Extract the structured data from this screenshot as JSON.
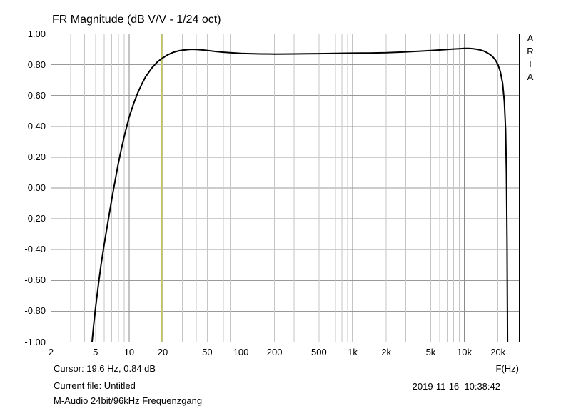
{
  "title": "FR Magnitude (dB V/V - 1/24 oct)",
  "brand": {
    "name": "ARTA",
    "letters": [
      "A",
      "R",
      "T",
      "A"
    ]
  },
  "footer": {
    "cursor_readout": "Cursor: 19.6 Hz, 0.84 dB",
    "x_axis_label": "F(Hz)",
    "current_file": "Current file: Untitled",
    "datetime": "2019-11-16  10:38:42",
    "measurement_name": "M-Audio 24bit/96kHz Frequenzgang"
  },
  "chart_data": {
    "type": "line",
    "title": "FR Magnitude (dB V/V - 1/24 oct)",
    "xlabel": "F(Hz)",
    "ylabel": "dB V/V",
    "x_scale": "log",
    "xlim": [
      2,
      31000
    ],
    "ylim": [
      -1.0,
      1.0
    ],
    "grid": true,
    "x_ticks": [
      2,
      5,
      10,
      20,
      50,
      100,
      200,
      500,
      1000,
      2000,
      5000,
      10000,
      20000
    ],
    "x_tick_labels": [
      "2",
      "5",
      "10",
      "20",
      "50",
      "100",
      "200",
      "500",
      "1k",
      "2k",
      "5k",
      "10k",
      "20k"
    ],
    "y_ticks": [
      1.0,
      0.8,
      0.6,
      0.4,
      0.2,
      0.0,
      -0.2,
      -0.4,
      -0.6,
      -0.8,
      -1.0
    ],
    "y_tick_labels": [
      "1.00",
      "0.80",
      "0.60",
      "0.40",
      "0.20",
      "0.00",
      "-0.20",
      "-0.40",
      "-0.60",
      "-0.80",
      "-1.00"
    ],
    "cursor": {
      "freq_hz": 19.6,
      "value_db": 0.84,
      "color": "#c3c35c"
    },
    "colors": {
      "curve": "#000000",
      "frame": "#000000",
      "grid_horizontal": "#9a9a9a",
      "grid_decade": "#8a8a8a",
      "grid_minor": "#c6c6c6",
      "background": "#ffffff",
      "text": "#000000"
    },
    "series": [
      {
        "name": "M-Audio 24bit/96kHz Frequenzgang",
        "color": "#000000",
        "points": [
          [
            4.55,
            -1.08
          ],
          [
            4.8,
            -0.9
          ],
          [
            5.0,
            -0.78
          ],
          [
            5.3,
            -0.63
          ],
          [
            5.6,
            -0.5
          ],
          [
            6.0,
            -0.36
          ],
          [
            6.5,
            -0.21
          ],
          [
            7.0,
            -0.07
          ],
          [
            7.5,
            0.05
          ],
          [
            8.0,
            0.16
          ],
          [
            8.5,
            0.25
          ],
          [
            9.0,
            0.33
          ],
          [
            10.0,
            0.46
          ],
          [
            11.0,
            0.55
          ],
          [
            12.0,
            0.62
          ],
          [
            13.0,
            0.675
          ],
          [
            14.0,
            0.72
          ],
          [
            16.0,
            0.78
          ],
          [
            18.0,
            0.82
          ],
          [
            19.6,
            0.84
          ],
          [
            22.0,
            0.863
          ],
          [
            25.0,
            0.881
          ],
          [
            28.0,
            0.891
          ],
          [
            32.0,
            0.897
          ],
          [
            36.0,
            0.9
          ],
          [
            40.0,
            0.899
          ],
          [
            45.0,
            0.896
          ],
          [
            50.0,
            0.893
          ],
          [
            60.0,
            0.886
          ],
          [
            70.0,
            0.881
          ],
          [
            80.0,
            0.878
          ],
          [
            90.0,
            0.876
          ],
          [
            100.0,
            0.874
          ],
          [
            120.0,
            0.872
          ],
          [
            150.0,
            0.87
          ],
          [
            200.0,
            0.869
          ],
          [
            300.0,
            0.87
          ],
          [
            400.0,
            0.871
          ],
          [
            500.0,
            0.872
          ],
          [
            700.0,
            0.874
          ],
          [
            1000.0,
            0.875
          ],
          [
            1400.0,
            0.876
          ],
          [
            2000.0,
            0.878
          ],
          [
            2800.0,
            0.882
          ],
          [
            4000.0,
            0.888
          ],
          [
            5000.0,
            0.892
          ],
          [
            6300.0,
            0.897
          ],
          [
            8000.0,
            0.902
          ],
          [
            9000.0,
            0.904
          ],
          [
            10000.0,
            0.906
          ],
          [
            11000.0,
            0.906
          ],
          [
            12000.0,
            0.904
          ],
          [
            13000.0,
            0.9
          ],
          [
            14000.0,
            0.895
          ],
          [
            15000.0,
            0.888
          ],
          [
            16000.0,
            0.878
          ],
          [
            17000.0,
            0.866
          ],
          [
            18000.0,
            0.851
          ],
          [
            19000.0,
            0.83
          ],
          [
            20000.0,
            0.8
          ],
          [
            21000.0,
            0.755
          ],
          [
            22000.0,
            0.68
          ],
          [
            22800.0,
            0.56
          ],
          [
            23400.0,
            0.38
          ],
          [
            23800.0,
            0.1
          ],
          [
            24100.0,
            -0.35
          ],
          [
            24400.0,
            -1.08
          ]
        ]
      }
    ]
  }
}
